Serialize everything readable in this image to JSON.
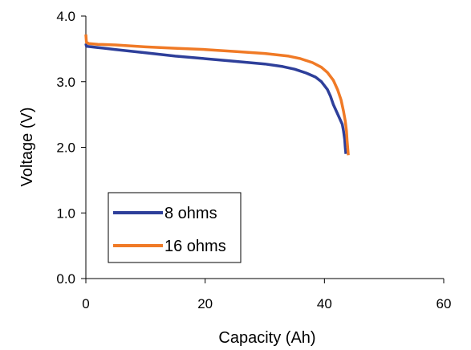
{
  "chart_data": {
    "type": "line",
    "title": "",
    "xlabel": "Capacity (Ah)",
    "ylabel": "Voltage (V)",
    "xlim": [
      0,
      60
    ],
    "ylim": [
      0,
      4
    ],
    "x_ticks": [
      0,
      20,
      40,
      60
    ],
    "x_tick_labels": [
      "0",
      "20",
      "40",
      "60"
    ],
    "y_ticks": [
      0,
      1,
      2,
      3,
      4
    ],
    "y_tick_labels": [
      "0.0",
      "1.0",
      "2.0",
      "3.0",
      "4.0"
    ],
    "grid": false,
    "legend_position": "bottom-left",
    "series": [
      {
        "name": "8 ohms",
        "color": "#2E3F9A",
        "x": [
          0,
          0.1,
          2,
          5,
          10,
          15,
          20,
          25,
          30,
          33,
          35,
          37,
          38.5,
          39.5,
          40.5,
          41,
          41.5,
          42,
          42.5,
          43,
          43.2,
          43.4,
          43.5,
          43.6
        ],
        "y": [
          3.58,
          3.54,
          3.52,
          3.49,
          3.44,
          3.39,
          3.35,
          3.31,
          3.27,
          3.23,
          3.19,
          3.13,
          3.07,
          3.0,
          2.88,
          2.78,
          2.65,
          2.55,
          2.45,
          2.35,
          2.25,
          2.12,
          2.0,
          1.9
        ]
      },
      {
        "name": "16 ohms",
        "color": "#F07A26",
        "x": [
          0,
          0.1,
          0.5,
          2,
          5,
          10,
          15,
          20,
          25,
          30,
          34,
          36,
          38,
          39.5,
          40.5,
          41.5,
          42.2,
          42.8,
          43.2,
          43.5,
          43.7,
          43.8,
          43.9,
          44
        ],
        "y": [
          3.72,
          3.6,
          3.58,
          3.57,
          3.56,
          3.53,
          3.51,
          3.49,
          3.46,
          3.43,
          3.39,
          3.35,
          3.29,
          3.22,
          3.14,
          3.02,
          2.88,
          2.72,
          2.55,
          2.4,
          2.25,
          2.1,
          2.0,
          1.88
        ]
      }
    ]
  },
  "colors": {
    "axis": "#000000",
    "legend_border": "#000000"
  }
}
